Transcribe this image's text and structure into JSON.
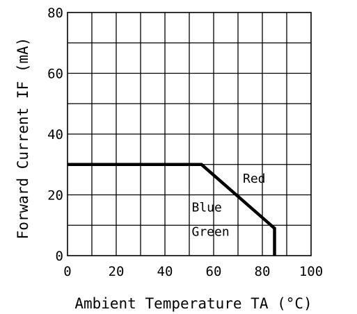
{
  "chart_data": {
    "type": "line",
    "title": "",
    "xlabel": "Ambient Temperature TA (°C)",
    "ylabel": "Forward Current IF (mA)",
    "xlim": [
      0,
      100
    ],
    "ylim": [
      0,
      80
    ],
    "x_ticks": [
      0,
      20,
      40,
      60,
      80,
      100
    ],
    "y_ticks": [
      0,
      20,
      40,
      60,
      80
    ],
    "x_tick_labels": [
      "0",
      "20",
      "40",
      "60",
      "80",
      "100"
    ],
    "y_tick_labels": [
      "0",
      "20",
      "40",
      "60",
      "80"
    ],
    "grid": true,
    "grid_step_x": 10,
    "grid_step_y": 10,
    "series": [
      {
        "x": [
          0,
          55,
          85,
          85
        ],
        "y": [
          30,
          30,
          9,
          0
        ]
      }
    ],
    "annotations": [
      {
        "text": "Red",
        "x": 72,
        "y": 24
      },
      {
        "text": "Blue",
        "x": 51,
        "y": 14.5
      },
      {
        "text": "Green",
        "x": 51,
        "y": 6.5
      }
    ]
  }
}
